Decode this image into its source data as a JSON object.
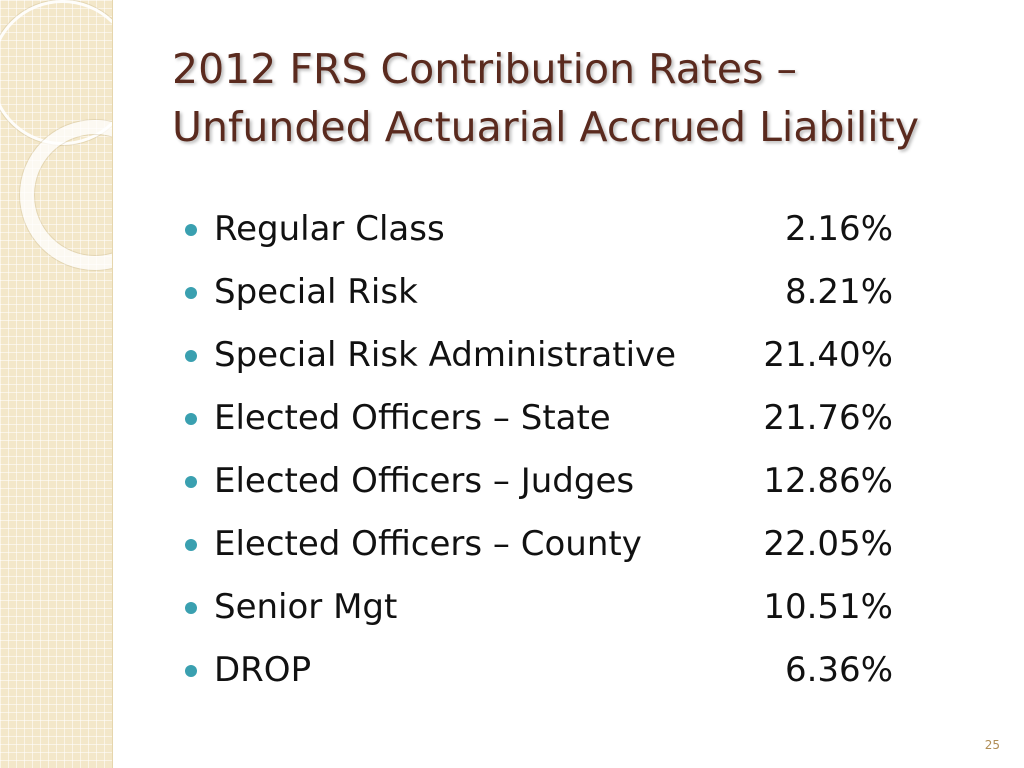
{
  "slide": {
    "title_line1": "2012 FRS Contribution Rates –",
    "title_line2": "Unfunded Actuarial Accrued Liability",
    "page_number": "25"
  },
  "rates": [
    {
      "label": "Regular Class",
      "value": "2.16%"
    },
    {
      "label": "Special Risk",
      "value": "8.21%"
    },
    {
      "label": "Special Risk Administrative",
      "value": "21.40%"
    },
    {
      "label": "Elected Officers – State",
      "value": "21.76%"
    },
    {
      "label": "Elected Officers – Judges",
      "value": "12.86%"
    },
    {
      "label": "Elected Officers – County",
      "value": "22.05%"
    },
    {
      "label": "Senior Mgt",
      "value": "10.51%"
    },
    {
      "label": "DROP",
      "value": "6.36%"
    }
  ],
  "colors": {
    "title": "#5a2a1e",
    "bullet": "#3aa0b0",
    "side_strip": "#f3e7c9",
    "page_number": "#b08d55"
  }
}
